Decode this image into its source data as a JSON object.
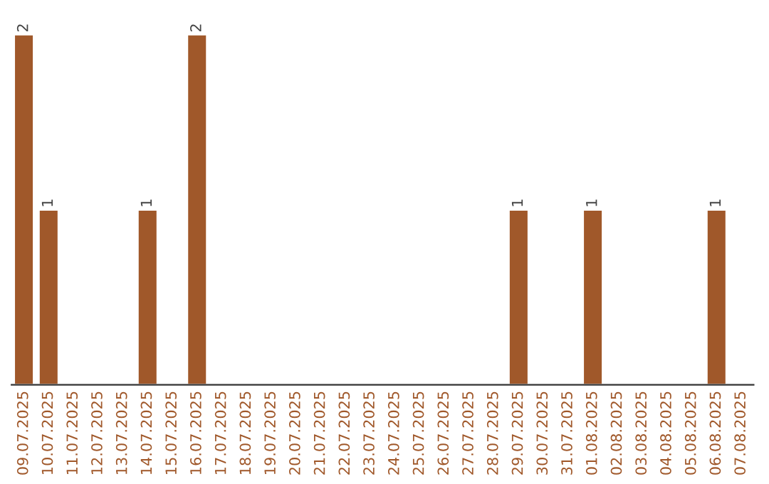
{
  "chart_data": {
    "type": "bar",
    "categories": [
      "09.07.2025",
      "10.07.2025",
      "11.07.2025",
      "12.07.2025",
      "13.07.2025",
      "14.07.2025",
      "15.07.2025",
      "16.07.2025",
      "17.07.2025",
      "18.07.2025",
      "19.07.2025",
      "20.07.2025",
      "21.07.2025",
      "22.07.2025",
      "23.07.2025",
      "24.07.2025",
      "25.07.2025",
      "26.07.2025",
      "27.07.2025",
      "28.07.2025",
      "29.07.2025",
      "30.07.2025",
      "31.07.2025",
      "01.08.2025",
      "02.08.2025",
      "03.08.2025",
      "04.08.2025",
      "05.08.2025",
      "06.08.2025",
      "07.08.2025"
    ],
    "values": [
      2,
      1,
      0,
      0,
      0,
      1,
      0,
      2,
      0,
      0,
      0,
      0,
      0,
      0,
      0,
      0,
      0,
      0,
      0,
      0,
      1,
      0,
      0,
      1,
      0,
      0,
      0,
      0,
      1,
      0
    ],
    "value_labels": [
      "2",
      "1",
      null,
      null,
      null,
      "1",
      null,
      "2",
      null,
      null,
      null,
      null,
      null,
      null,
      null,
      null,
      null,
      null,
      null,
      null,
      "1",
      null,
      null,
      "1",
      null,
      null,
      null,
      null,
      "1",
      null
    ],
    "color": "#a0582a",
    "grid": false,
    "legend": false,
    "tick_labels": "x"
  }
}
